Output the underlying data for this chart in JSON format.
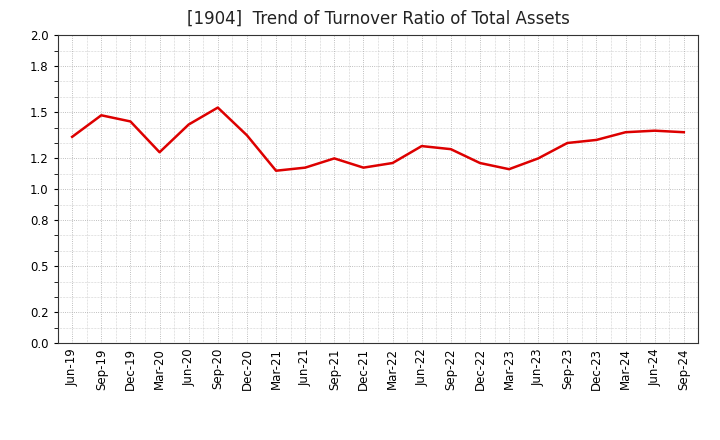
{
  "title": "[1904]  Trend of Turnover Ratio of Total Assets",
  "x_labels": [
    "Jun-19",
    "Sep-19",
    "Dec-19",
    "Mar-20",
    "Jun-20",
    "Sep-20",
    "Dec-20",
    "Mar-21",
    "Jun-21",
    "Sep-21",
    "Dec-21",
    "Mar-22",
    "Jun-22",
    "Sep-22",
    "Dec-22",
    "Mar-23",
    "Jun-23",
    "Sep-23",
    "Dec-23",
    "Mar-24",
    "Jun-24",
    "Sep-24"
  ],
  "y_values": [
    1.34,
    1.48,
    1.44,
    1.24,
    1.42,
    1.53,
    1.35,
    1.12,
    1.14,
    1.2,
    1.14,
    1.17,
    1.28,
    1.26,
    1.17,
    1.13,
    1.2,
    1.3,
    1.32,
    1.37,
    1.38,
    1.37
  ],
  "line_color": "#dd0000",
  "line_width": 1.8,
  "ylim": [
    0.0,
    2.0
  ],
  "yticks": [
    0.0,
    0.2,
    0.5,
    0.8,
    1.0,
    1.2,
    1.5,
    1.8,
    2.0
  ],
  "background_color": "#ffffff",
  "grid_color": "#aaaaaa",
  "title_fontsize": 12,
  "tick_fontsize": 8.5
}
